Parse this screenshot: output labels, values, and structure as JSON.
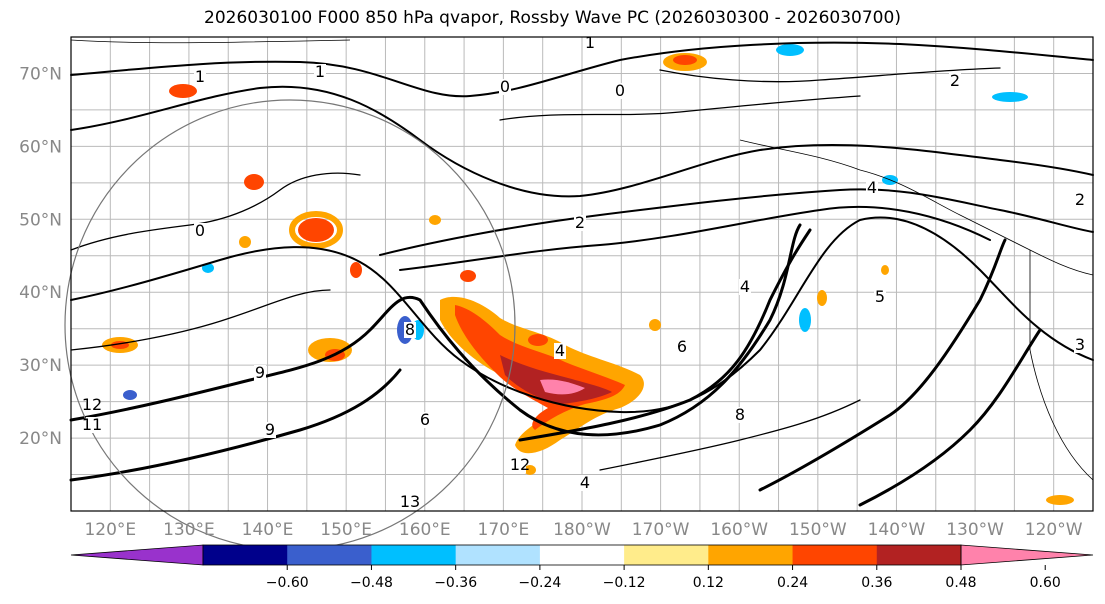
{
  "title": "2026030100 F000 850 hPa qvapor, Rossby Wave PC (2026030300 - 2026030700)",
  "latitude_labels": [
    {
      "value": 70,
      "label": "70°N"
    },
    {
      "value": 60,
      "label": "60°N"
    },
    {
      "value": 50,
      "label": "50°N"
    },
    {
      "value": 40,
      "label": "40°N"
    },
    {
      "value": 30,
      "label": "30°N"
    },
    {
      "value": 20,
      "label": "20°N"
    }
  ],
  "longitude_labels": [
    {
      "value": 120,
      "label": "120°E"
    },
    {
      "value": 130,
      "label": "130°E"
    },
    {
      "value": 140,
      "label": "140°E"
    },
    {
      "value": 150,
      "label": "150°E"
    },
    {
      "value": 160,
      "label": "160°E"
    },
    {
      "value": 170,
      "label": "170°E"
    },
    {
      "value": 180,
      "label": "180°W"
    },
    {
      "value": 190,
      "label": "170°W"
    },
    {
      "value": 200,
      "label": "160°W"
    },
    {
      "value": 210,
      "label": "150°W"
    },
    {
      "value": 220,
      "label": "140°W"
    },
    {
      "value": 230,
      "label": "130°W"
    },
    {
      "value": 240,
      "label": "120°W"
    }
  ],
  "map_extent": {
    "lon_min": 115,
    "lon_max": 245,
    "lat_min": 10,
    "lat_max": 75
  },
  "colorbar": {
    "colors": [
      "#9932CC",
      "#00008B",
      "#3A5FCD",
      "#00BFFF",
      "#B0E2FF",
      "#FFFFFF",
      "#FFEC8B",
      "#FFA500",
      "#FF4500",
      "#B22222",
      "#FF82AB"
    ],
    "ticks": [
      "−0.60",
      "−0.48",
      "−0.36",
      "−0.24",
      "−0.12",
      "0.12",
      "0.24",
      "0.36",
      "0.48",
      "0.60"
    ]
  },
  "contour_labels": [
    "1",
    "1",
    "0",
    "0",
    "2",
    "4",
    "4",
    "6",
    "8",
    "12",
    "13",
    "4",
    "5",
    "8",
    "4",
    "2",
    "3",
    "2",
    "0",
    "9",
    "6",
    "9",
    "11",
    "12",
    "1"
  ],
  "shaded_regions": [
    {
      "name": "positive-anomaly-plume",
      "level": 0.48,
      "color": "#B22222"
    },
    {
      "name": "positive-anomaly-core",
      "level": 0.6,
      "color": "#FF82AB"
    }
  ]
}
